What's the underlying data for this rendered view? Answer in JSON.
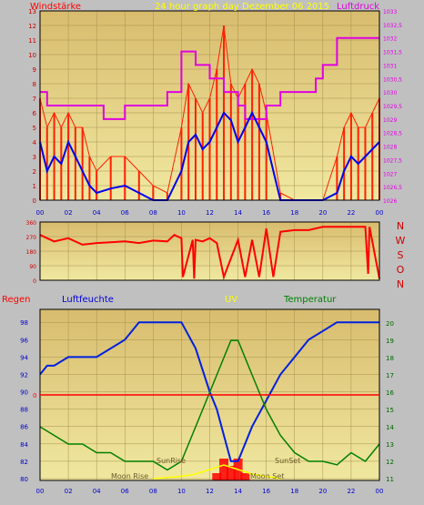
{
  "header": {
    "left_label": "Windstärke",
    "title": "24 hour graph day   Dezember 06 2015",
    "right_label": "Luftdruck"
  },
  "colors": {
    "wind": "#ff2000",
    "gust_fill": "#ff2000",
    "wind_avg": "#0000ee",
    "pressure": "#e000e0",
    "direction": "#ff0000",
    "humidity": "#0020e0",
    "temperature": "#008000",
    "rain": "#ff0000",
    "uv": "#ffff00",
    "plot_bg_top": "#d8bc6e",
    "plot_bg_bottom": "#f0e8a0"
  },
  "chart_data": [
    {
      "type": "line",
      "name": "wind_and_pressure",
      "x_ticks": [
        "00",
        "02",
        "04",
        "06",
        "08",
        "10",
        "12",
        "14",
        "16",
        "18",
        "20",
        "22",
        "00"
      ],
      "left_axis": {
        "label": "Windstärke",
        "ylim": [
          0,
          13
        ],
        "ticks": [
          "0",
          "1",
          "2",
          "3",
          "4",
          "5",
          "6",
          "7",
          "8",
          "9",
          "10",
          "11",
          "12",
          "13"
        ]
      },
      "right_axis": {
        "label": "Luftdruck",
        "ylim": [
          1026,
          1033
        ],
        "ticks": [
          "1026",
          "1026,5",
          "1027",
          "1027,5",
          "1028",
          "1028,5",
          "1029",
          "1029,5",
          "1030",
          "1030,5",
          "1031",
          "1031,5",
          "1032",
          "1032,5",
          "1033"
        ]
      },
      "series": [
        {
          "name": "Windstärke",
          "hours": [
            0,
            0.5,
            1,
            1.5,
            2,
            2.5,
            3,
            3.5,
            4,
            5,
            6,
            7,
            8,
            9,
            10,
            10.5,
            11,
            11.5,
            12,
            12.5,
            13,
            13.5,
            14,
            14.5,
            15,
            15.5,
            16,
            17,
            18,
            19,
            20,
            21,
            21.5,
            22,
            22.5,
            23,
            23.5,
            24
          ],
          "values": [
            4,
            2,
            3,
            2.5,
            4,
            3,
            2,
            1,
            0.5,
            0.8,
            1,
            0.5,
            0,
            0,
            2,
            4,
            4.5,
            3.5,
            4,
            5,
            6,
            5.5,
            4,
            5,
            6,
            5,
            4,
            0,
            0,
            0,
            0,
            0.5,
            2,
            3,
            2.5,
            3,
            3.5,
            4
          ]
        },
        {
          "name": "Böen",
          "hours": [
            0,
            0.5,
            1,
            1.5,
            2,
            2.5,
            3,
            3.5,
            4,
            5,
            6,
            7,
            8,
            9,
            10,
            10.5,
            11,
            11.5,
            12,
            12.5,
            13,
            13.5,
            14,
            14.5,
            15,
            15.5,
            16,
            17,
            18,
            19,
            20,
            21,
            21.5,
            22,
            22.5,
            23,
            23.5,
            24
          ],
          "values": [
            7,
            5,
            6,
            5,
            6,
            5,
            5,
            3,
            2,
            3,
            3,
            2,
            1,
            0.5,
            5,
            8,
            7,
            6,
            7,
            9,
            12,
            8,
            7,
            8,
            9,
            8,
            6,
            0.5,
            0,
            0,
            0,
            3,
            5,
            6,
            5,
            5,
            6,
            7
          ]
        },
        {
          "name": "Luftdruck",
          "hours": [
            0,
            0.5,
            0.5,
            4.5,
            4.5,
            6,
            6,
            9,
            9,
            10,
            10,
            11,
            11,
            12,
            12,
            13,
            13,
            14,
            14,
            14.5,
            14.5,
            16,
            16,
            17,
            17,
            19.5,
            19.5,
            20,
            20,
            21,
            21,
            24
          ],
          "values": [
            1030,
            1030,
            1029.5,
            1029.5,
            1029,
            1029,
            1029.5,
            1029.5,
            1030,
            1030,
            1031.5,
            1031.5,
            1031,
            1031,
            1030.5,
            1030.5,
            1030,
            1030,
            1029.5,
            1029.5,
            1029,
            1029,
            1029.5,
            1029.5,
            1030,
            1030,
            1030.5,
            1030.5,
            1031,
            1031,
            1032,
            1032
          ]
        }
      ]
    },
    {
      "type": "line",
      "name": "wind_direction",
      "y_ticks": [
        "0",
        "90",
        "180",
        "270",
        "360"
      ],
      "ylim": [
        0,
        360
      ],
      "right_labels": [
        "N",
        "W",
        "S",
        "O",
        "N"
      ],
      "series": [
        {
          "name": "Windrichtung",
          "hours": [
            0,
            1,
            2,
            3,
            4,
            5,
            6,
            7,
            8,
            9,
            9.5,
            10,
            10.1,
            10.8,
            10.9,
            11,
            11.5,
            12,
            12.5,
            13,
            14,
            14.5,
            15,
            15.5,
            16,
            16.5,
            17,
            18,
            19,
            20,
            21,
            22,
            23,
            23.2,
            23.3,
            24
          ],
          "values": [
            280,
            240,
            260,
            220,
            230,
            235,
            240,
            230,
            245,
            240,
            280,
            260,
            20,
            250,
            10,
            250,
            240,
            260,
            230,
            20,
            250,
            20,
            250,
            20,
            320,
            20,
            300,
            310,
            310,
            330,
            330,
            330,
            330,
            40,
            330,
            10
          ]
        }
      ]
    },
    {
      "type": "line",
      "name": "humidity_temperature_uv_rain",
      "top_labels": {
        "rain": "Regen",
        "humidity": "Luftfeuchte",
        "uv": "UV",
        "temperature": "Temperatur"
      },
      "left_axis": {
        "label": "Luftfeuchte",
        "ylim": [
          80,
          98
        ],
        "ticks": [
          "80",
          "82",
          "84",
          "86",
          "88",
          "90",
          "92",
          "94",
          "96",
          "98"
        ]
      },
      "right_axis": {
        "label": "Temperatur",
        "ylim": [
          11,
          20
        ],
        "ticks": [
          "11",
          "12",
          "13",
          "14",
          "15",
          "16",
          "17",
          "18",
          "19",
          "20"
        ]
      },
      "rain_axis": {
        "label": "Regen",
        "ticks": [
          "0"
        ]
      },
      "annotations": [
        "SunRise",
        "SunSet",
        "Moon Rise",
        "Moon Set"
      ],
      "series": [
        {
          "name": "Luftfeuchte",
          "hours": [
            0,
            0.5,
            1,
            2,
            3,
            4,
            5,
            6,
            7,
            8,
            9,
            10,
            11,
            12,
            12.5,
            13,
            13.5,
            14,
            15,
            16,
            17,
            18,
            19,
            20,
            21,
            22,
            23,
            24
          ],
          "values": [
            92,
            93,
            93,
            94,
            94,
            94,
            95,
            96,
            98,
            98,
            98,
            98,
            95,
            90,
            88,
            85,
            82,
            82,
            86,
            89,
            92,
            94,
            96,
            97,
            98,
            98,
            98,
            98
          ]
        },
        {
          "name": "Temperatur",
          "hours": [
            0,
            1,
            2,
            3,
            4,
            5,
            6,
            7,
            8,
            9,
            10,
            11,
            12,
            13,
            13.5,
            14,
            15,
            16,
            17,
            18,
            19,
            20,
            21,
            22,
            23,
            24
          ],
          "values": [
            14,
            13.5,
            13,
            13,
            12.5,
            12.5,
            12,
            12,
            12,
            11.5,
            12,
            14,
            16,
            18,
            19,
            19,
            17,
            15,
            13.5,
            12.5,
            12,
            12,
            11.8,
            12.5,
            12,
            13
          ]
        },
        {
          "name": "UV",
          "hours": [
            8,
            10,
            11,
            12,
            13,
            14,
            15,
            16,
            17
          ],
          "values": [
            0,
            0.5,
            1,
            2,
            3,
            2,
            1,
            0.5,
            0
          ]
        },
        {
          "name": "Regen",
          "hours": [
            12,
            12.5,
            13,
            13.5,
            14,
            14.5,
            15
          ],
          "values": [
            0,
            1,
            3,
            2,
            3,
            1,
            0
          ]
        }
      ]
    }
  ]
}
